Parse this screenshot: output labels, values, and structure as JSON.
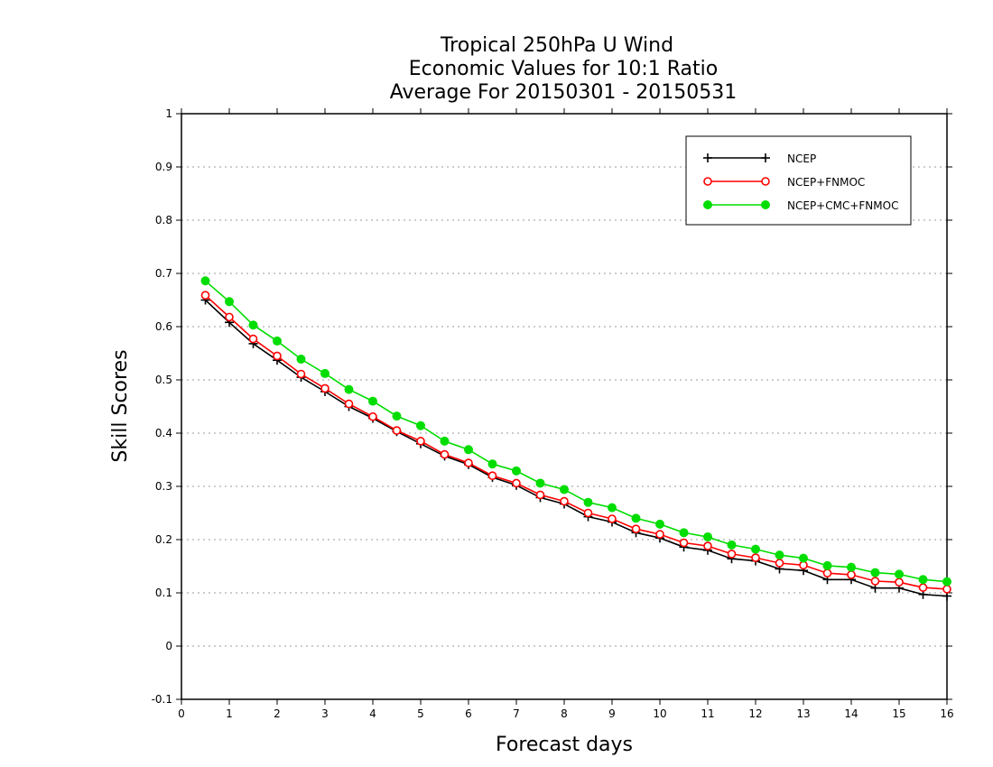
{
  "chart_data": {
    "type": "line",
    "title": [
      "Tropical 250hPa U Wind",
      "Economic Values for 10:1 Ratio",
      "Average For 20150301 - 20150531"
    ],
    "xlabel": "Forecast days",
    "ylabel": "Skill Scores",
    "xlim": [
      0,
      16
    ],
    "ylim": [
      -0.1,
      1
    ],
    "xticks": [
      0,
      1,
      2,
      3,
      4,
      5,
      6,
      7,
      8,
      9,
      10,
      11,
      12,
      13,
      14,
      15,
      16
    ],
    "yticks": [
      -0.1,
      0,
      0.1,
      0.2,
      0.3,
      0.4,
      0.5,
      0.6,
      0.7,
      0.8,
      0.9,
      1
    ],
    "ytick_labels": [
      "-0.1",
      "0",
      "0.1",
      "0.2",
      "0.3",
      "0.4",
      "0.5",
      "0.6",
      "0.7",
      "0.8",
      "0.9",
      "1"
    ],
    "grid": "horizontal dotted",
    "legend_position": "top-right",
    "x": [
      0.5,
      1,
      1.5,
      2,
      2.5,
      3,
      3.5,
      4,
      4.5,
      5,
      5.5,
      6,
      6.5,
      7,
      7.5,
      8,
      8.5,
      9,
      9.5,
      10,
      10.5,
      11,
      11.5,
      12,
      12.5,
      13,
      13.5,
      14,
      14.5,
      15,
      15.5,
      16
    ],
    "series": [
      {
        "name": "NCEP",
        "color": "#000000",
        "marker": "plus",
        "values": [
          0.65,
          0.608,
          0.568,
          0.537,
          0.505,
          0.478,
          0.45,
          0.428,
          0.403,
          0.38,
          0.357,
          0.341,
          0.317,
          0.302,
          0.279,
          0.267,
          0.243,
          0.233,
          0.213,
          0.203,
          0.186,
          0.18,
          0.164,
          0.16,
          0.145,
          0.142,
          0.125,
          0.125,
          0.109,
          0.109,
          0.097,
          0.094
        ]
      },
      {
        "name": "NCEP+FNMOC",
        "color": "#ff0000",
        "marker": "open-circle",
        "values": [
          0.659,
          0.618,
          0.577,
          0.545,
          0.511,
          0.484,
          0.455,
          0.431,
          0.405,
          0.385,
          0.36,
          0.344,
          0.32,
          0.306,
          0.284,
          0.272,
          0.25,
          0.239,
          0.22,
          0.21,
          0.194,
          0.188,
          0.173,
          0.166,
          0.156,
          0.152,
          0.137,
          0.134,
          0.122,
          0.12,
          0.11,
          0.107
        ]
      },
      {
        "name": "NCEP+CMC+FNMOC",
        "color": "#00dd00",
        "marker": "filled-circle",
        "values": [
          0.686,
          0.647,
          0.603,
          0.573,
          0.539,
          0.512,
          0.482,
          0.46,
          0.432,
          0.414,
          0.385,
          0.369,
          0.342,
          0.329,
          0.306,
          0.294,
          0.27,
          0.26,
          0.24,
          0.229,
          0.213,
          0.205,
          0.19,
          0.182,
          0.171,
          0.165,
          0.151,
          0.148,
          0.138,
          0.135,
          0.125,
          0.121
        ]
      }
    ]
  }
}
